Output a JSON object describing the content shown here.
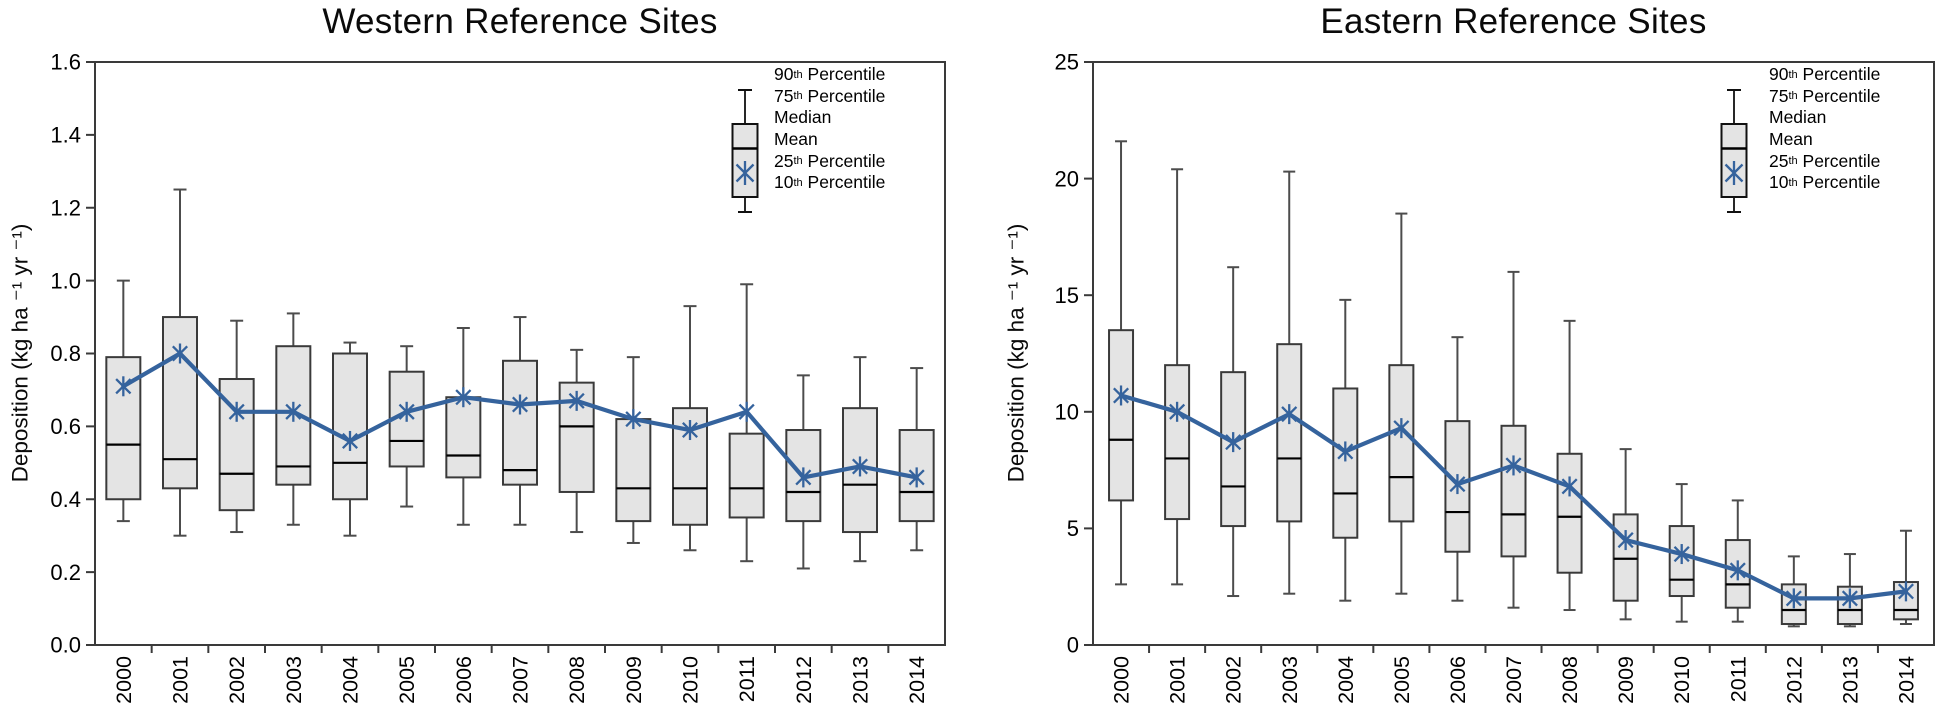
{
  "legend": {
    "items": [
      {
        "pre": "90",
        "sup": "th",
        "post": " Percentile"
      },
      {
        "pre": "75",
        "sup": "th",
        "post": " Percentile"
      },
      {
        "pre": "Median",
        "sup": "",
        "post": ""
      },
      {
        "pre": "Mean",
        "sup": "",
        "post": ""
      },
      {
        "pre": "25",
        "sup": "th",
        "post": " Percentile"
      },
      {
        "pre": "10",
        "sup": "th",
        "post": " Percentile"
      }
    ]
  },
  "colors": {
    "box_fill": "#e4e4e4",
    "box_stroke": "#3a3a3a",
    "whisker": "#4c4c4c",
    "median": "#000000",
    "mean_line": "#35639d",
    "axis": "#3a3a3a",
    "text": "#000000"
  },
  "chart_data": [
    {
      "type": "box",
      "title": "Western Reference Sites",
      "xlabel": "",
      "ylabel": "Deposition (kg ha ⁻¹ yr ⁻¹)",
      "ylim": [
        0,
        1.6
      ],
      "grid": false,
      "legend_position": "top-right",
      "yticks": {
        "values": [
          0,
          0.2,
          0.4,
          0.6,
          0.8,
          1.0,
          1.2,
          1.4,
          1.6
        ],
        "labels": [
          "0.0",
          "0.2",
          "0.4",
          "0.6",
          "0.8",
          "1.0",
          "1.2",
          "1.4",
          "1.6"
        ]
      },
      "categories": [
        "2000",
        "2001",
        "2002",
        "2003",
        "2004",
        "2005",
        "2006",
        "2007",
        "2008",
        "2009",
        "2010",
        "2011",
        "2012",
        "2013",
        "2014"
      ],
      "p90": [
        1.0,
        1.25,
        0.89,
        0.91,
        0.83,
        0.82,
        0.87,
        0.9,
        0.81,
        0.79,
        0.93,
        0.99,
        0.74,
        0.79,
        0.76
      ],
      "p75": [
        0.79,
        0.9,
        0.73,
        0.82,
        0.8,
        0.75,
        0.68,
        0.78,
        0.72,
        0.62,
        0.65,
        0.58,
        0.59,
        0.65,
        0.59
      ],
      "median": [
        0.55,
        0.51,
        0.47,
        0.49,
        0.5,
        0.56,
        0.52,
        0.48,
        0.6,
        0.43,
        0.43,
        0.43,
        0.42,
        0.44,
        0.42
      ],
      "mean": [
        0.71,
        0.8,
        0.64,
        0.64,
        0.56,
        0.64,
        0.68,
        0.66,
        0.67,
        0.62,
        0.59,
        0.64,
        0.46,
        0.49,
        0.46
      ],
      "p25": [
        0.4,
        0.43,
        0.37,
        0.44,
        0.4,
        0.49,
        0.46,
        0.44,
        0.42,
        0.34,
        0.33,
        0.35,
        0.34,
        0.31,
        0.34
      ],
      "p10": [
        0.34,
        0.3,
        0.31,
        0.33,
        0.3,
        0.38,
        0.33,
        0.33,
        0.31,
        0.28,
        0.26,
        0.23,
        0.21,
        0.23,
        0.26
      ]
    },
    {
      "type": "box",
      "title": "Eastern Reference Sites",
      "xlabel": "",
      "ylabel": "Deposition (kg ha ⁻¹ yr ⁻¹)",
      "ylim": [
        0,
        25
      ],
      "grid": false,
      "legend_position": "top-right",
      "yticks": {
        "values": [
          0,
          5,
          10,
          15,
          20,
          25
        ],
        "labels": [
          "0",
          "5",
          "10",
          "15",
          "20",
          "25"
        ]
      },
      "categories": [
        "2000",
        "2001",
        "2002",
        "2003",
        "2004",
        "2005",
        "2006",
        "2007",
        "2008",
        "2009",
        "2010",
        "2011",
        "2012",
        "2013",
        "2014"
      ],
      "p90": [
        21.6,
        20.4,
        16.2,
        20.3,
        14.8,
        18.5,
        13.2,
        16.0,
        13.9,
        8.4,
        6.9,
        6.2,
        3.8,
        3.9,
        4.9
      ],
      "p75": [
        13.5,
        12.0,
        11.7,
        12.9,
        11.0,
        12.0,
        9.6,
        9.4,
        8.2,
        5.6,
        5.1,
        4.5,
        2.6,
        2.5,
        2.7
      ],
      "median": [
        8.8,
        8.0,
        6.8,
        8.0,
        6.5,
        7.2,
        5.7,
        5.6,
        5.5,
        3.7,
        2.8,
        2.6,
        1.5,
        1.5,
        1.5
      ],
      "mean": [
        10.7,
        10.0,
        8.7,
        9.9,
        8.3,
        9.3,
        6.9,
        7.7,
        6.8,
        4.5,
        3.9,
        3.2,
        2.0,
        2.0,
        2.3
      ],
      "p25": [
        6.2,
        5.4,
        5.1,
        5.3,
        4.6,
        5.3,
        4.0,
        3.8,
        3.1,
        1.9,
        2.1,
        1.6,
        0.9,
        0.9,
        1.1
      ],
      "p10": [
        2.6,
        2.6,
        2.1,
        2.2,
        1.9,
        2.2,
        1.9,
        1.6,
        1.5,
        1.1,
        1.0,
        1.0,
        0.8,
        0.8,
        0.9
      ]
    }
  ]
}
